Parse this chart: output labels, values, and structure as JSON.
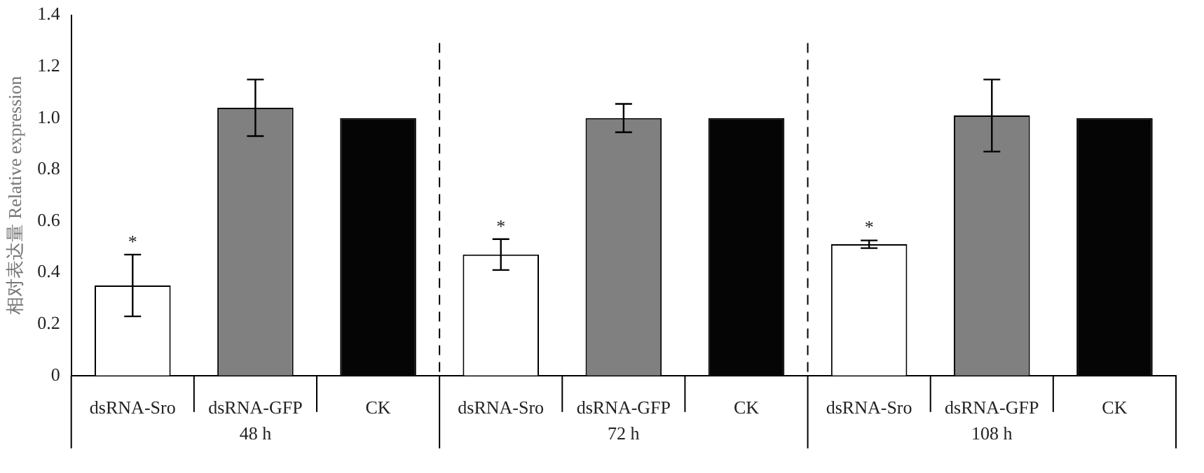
{
  "chart_data": {
    "type": "bar",
    "ylabel": "相对表达量 Relative expression",
    "categories": [
      "dsRNA-Sro",
      "dsRNA-GFP",
      "CK",
      "dsRNA-Sro",
      "dsRNA-GFP",
      "CK",
      "dsRNA-Sro",
      "dsRNA-GFP",
      "CK"
    ],
    "values": [
      0.35,
      1.04,
      1.0,
      0.47,
      1.0,
      1.0,
      0.51,
      1.01,
      1.0
    ],
    "colors": [
      "#ffffff",
      "#808080",
      "#050505",
      "#ffffff",
      "#808080",
      "#050505",
      "#ffffff",
      "#808080",
      "#050505"
    ],
    "errors": [
      0.12,
      0.11,
      null,
      0.06,
      0.055,
      null,
      0.015,
      0.14,
      null
    ],
    "value_labels": [
      "*",
      null,
      null,
      "*",
      null,
      null,
      "*",
      null,
      null
    ],
    "annotations": [
      "48 h",
      "72 h",
      "108 h"
    ],
    "ylim": [
      0,
      1.4
    ],
    "yticks": [
      0,
      0.2,
      0.4,
      0.6,
      0.8,
      {
        "value": 1,
        "label": "1.0"
      },
      1.2,
      1.4
    ],
    "grid": false,
    "legend": false
  }
}
